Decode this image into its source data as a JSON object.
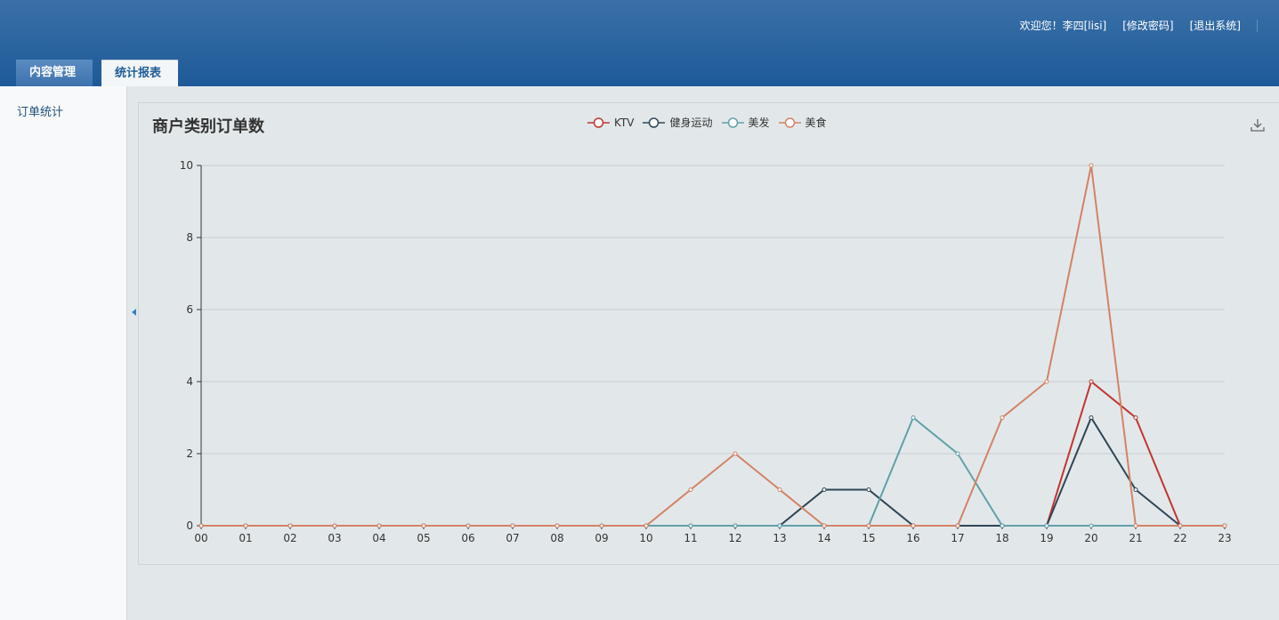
{
  "user": {
    "welcome": "欢迎您！李四[lisi]",
    "change_password": "[修改密码]",
    "logout": "[退出系统]"
  },
  "tabs": [
    {
      "label": "内容管理",
      "active": false
    },
    {
      "label": "统计报表",
      "active": true
    }
  ],
  "sidebar": {
    "items": [
      {
        "label": "订单统计"
      }
    ]
  },
  "chart_data": {
    "type": "line",
    "title": "商户类别订单数",
    "x": [
      "00",
      "01",
      "02",
      "03",
      "04",
      "05",
      "06",
      "07",
      "08",
      "09",
      "10",
      "11",
      "12",
      "13",
      "14",
      "15",
      "16",
      "17",
      "18",
      "19",
      "20",
      "21",
      "22",
      "23"
    ],
    "ylim": [
      0,
      10
    ],
    "yticks": [
      0,
      2,
      4,
      6,
      8,
      10
    ],
    "grid": true,
    "legend_position": "top-center",
    "series": [
      {
        "name": "KTV",
        "color": "#c23531",
        "values": [
          0,
          0,
          0,
          0,
          0,
          0,
          0,
          0,
          0,
          0,
          0,
          0,
          0,
          0,
          0,
          0,
          0,
          0,
          0,
          0,
          4,
          3,
          0,
          0
        ]
      },
      {
        "name": "健身运动",
        "color": "#2f4554",
        "values": [
          0,
          0,
          0,
          0,
          0,
          0,
          0,
          0,
          0,
          0,
          0,
          0,
          0,
          0,
          1,
          1,
          0,
          0,
          0,
          0,
          3,
          1,
          0,
          0
        ]
      },
      {
        "name": "美发",
        "color": "#61a0a8",
        "values": [
          0,
          0,
          0,
          0,
          0,
          0,
          0,
          0,
          0,
          0,
          0,
          0,
          0,
          0,
          0,
          0,
          3,
          2,
          0,
          0,
          0,
          0,
          0,
          0
        ]
      },
      {
        "name": "美食",
        "color": "#d48265",
        "values": [
          0,
          0,
          0,
          0,
          0,
          0,
          0,
          0,
          0,
          0,
          0,
          1,
          2,
          1,
          0,
          0,
          0,
          0,
          3,
          4,
          10,
          0,
          0,
          0
        ]
      }
    ]
  },
  "toolbox": {
    "download_icon": "download-icon"
  }
}
